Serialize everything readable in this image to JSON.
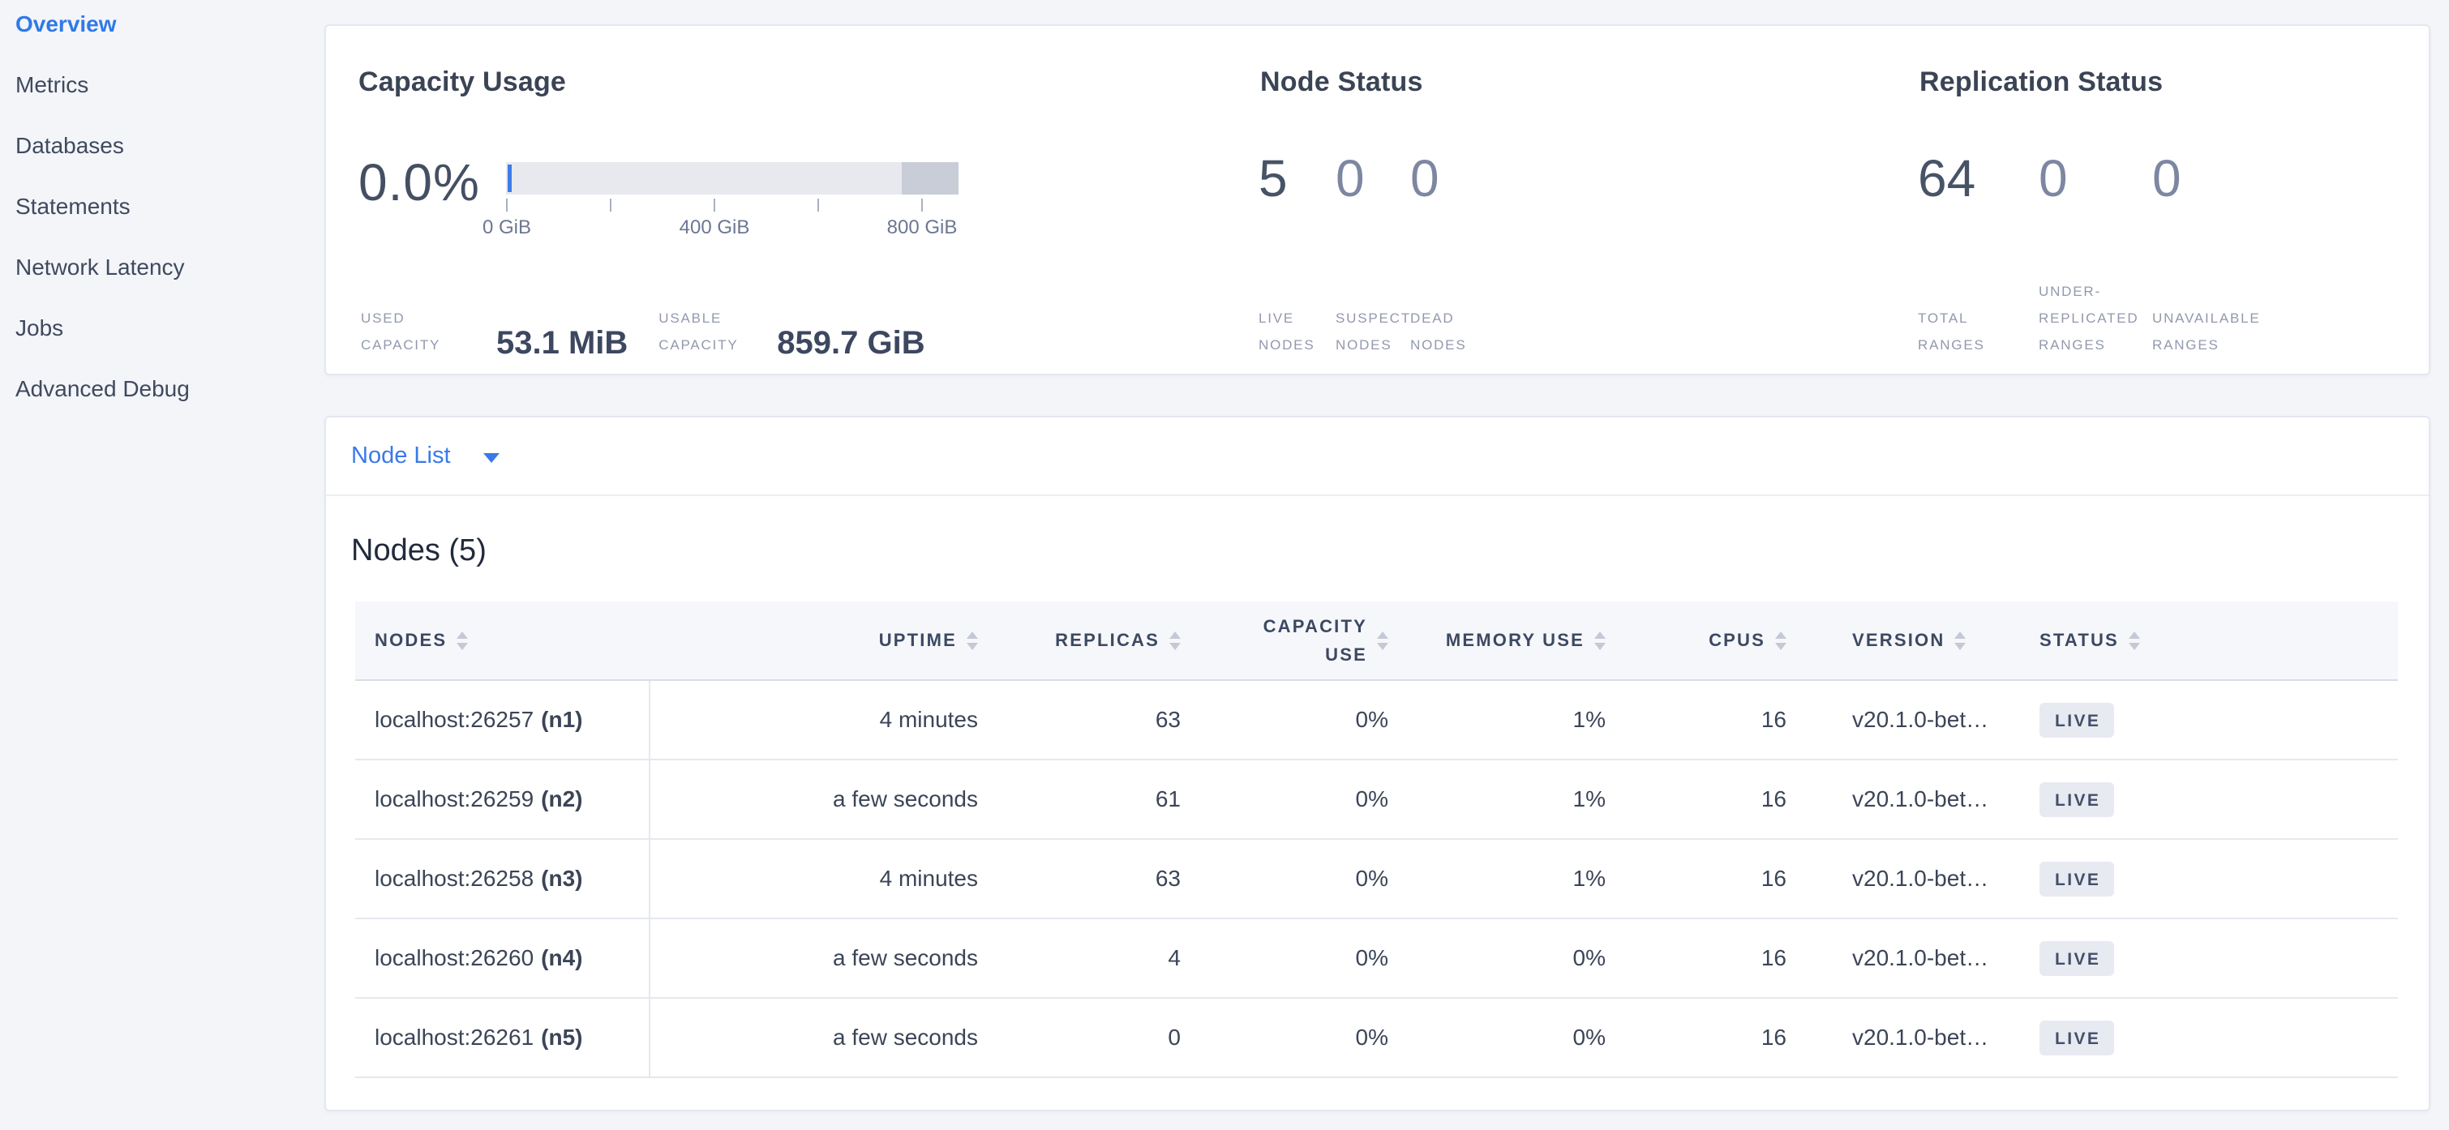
{
  "colors": {
    "accent_blue": "#3a79e8",
    "page_background": "#f4f5f9",
    "status_live_badge_bg": "#e8eaf1",
    "capacity_bar_fill": "#e7e9ee",
    "capacity_bar_reserved": "#c8cdd7",
    "dark_number": "#475366",
    "muted_number": "#7e87a1"
  },
  "sidebar": {
    "items": [
      {
        "label": "Overview",
        "active": true
      },
      {
        "label": "Metrics",
        "active": false
      },
      {
        "label": "Databases",
        "active": false
      },
      {
        "label": "Statements",
        "active": false
      },
      {
        "label": "Network Latency",
        "active": false
      },
      {
        "label": "Jobs",
        "active": false
      },
      {
        "label": "Advanced Debug",
        "active": false
      }
    ]
  },
  "summary": {
    "capacity": {
      "title": "Capacity Usage",
      "used_percent": "0.0%",
      "ticks": [
        "0 GiB",
        "400 GiB",
        "800 GiB"
      ],
      "used_label": "USED CAPACITY",
      "used_value": "53.1 MiB",
      "usable_label": "USABLE CAPACITY",
      "usable_value": "859.7 GiB"
    },
    "node_status": {
      "title": "Node Status",
      "stats": [
        {
          "value": "5",
          "label": "LIVE NODES",
          "muted": false
        },
        {
          "value": "0",
          "label": "SUSPECT NODES",
          "muted": true
        },
        {
          "value": "0",
          "label": "DEAD NODES",
          "muted": true
        }
      ]
    },
    "replication": {
      "title": "Replication Status",
      "stats": [
        {
          "value": "64",
          "label": "TOTAL RANGES",
          "muted": false
        },
        {
          "value": "0",
          "label": "UNDER-REPLICATED RANGES",
          "muted": true
        },
        {
          "value": "0",
          "label": "UNAVAILABLE RANGES",
          "muted": true
        }
      ]
    }
  },
  "node_list": {
    "label": "Node List"
  },
  "nodes_table": {
    "title": "Nodes (5)",
    "columns": [
      "NODES",
      "UPTIME",
      "REPLICAS",
      "CAPACITY USE",
      "MEMORY USE",
      "CPUS",
      "VERSION",
      "STATUS"
    ],
    "rows": [
      {
        "address": "localhost:26257",
        "id": "(n1)",
        "uptime": "4 minutes",
        "replicas": "63",
        "capacity_use": "0%",
        "memory_use": "1%",
        "cpus": "16",
        "version": "v20.1.0-bet…",
        "status": "LIVE"
      },
      {
        "address": "localhost:26259",
        "id": "(n2)",
        "uptime": "a few seconds",
        "replicas": "61",
        "capacity_use": "0%",
        "memory_use": "1%",
        "cpus": "16",
        "version": "v20.1.0-bet…",
        "status": "LIVE"
      },
      {
        "address": "localhost:26258",
        "id": "(n3)",
        "uptime": "4 minutes",
        "replicas": "63",
        "capacity_use": "0%",
        "memory_use": "1%",
        "cpus": "16",
        "version": "v20.1.0-bet…",
        "status": "LIVE"
      },
      {
        "address": "localhost:26260",
        "id": "(n4)",
        "uptime": "a few seconds",
        "replicas": "4",
        "capacity_use": "0%",
        "memory_use": "0%",
        "cpus": "16",
        "version": "v20.1.0-bet…",
        "status": "LIVE"
      },
      {
        "address": "localhost:26261",
        "id": "(n5)",
        "uptime": "a few seconds",
        "replicas": "0",
        "capacity_use": "0%",
        "memory_use": "0%",
        "cpus": "16",
        "version": "v20.1.0-bet…",
        "status": "LIVE"
      }
    ]
  }
}
